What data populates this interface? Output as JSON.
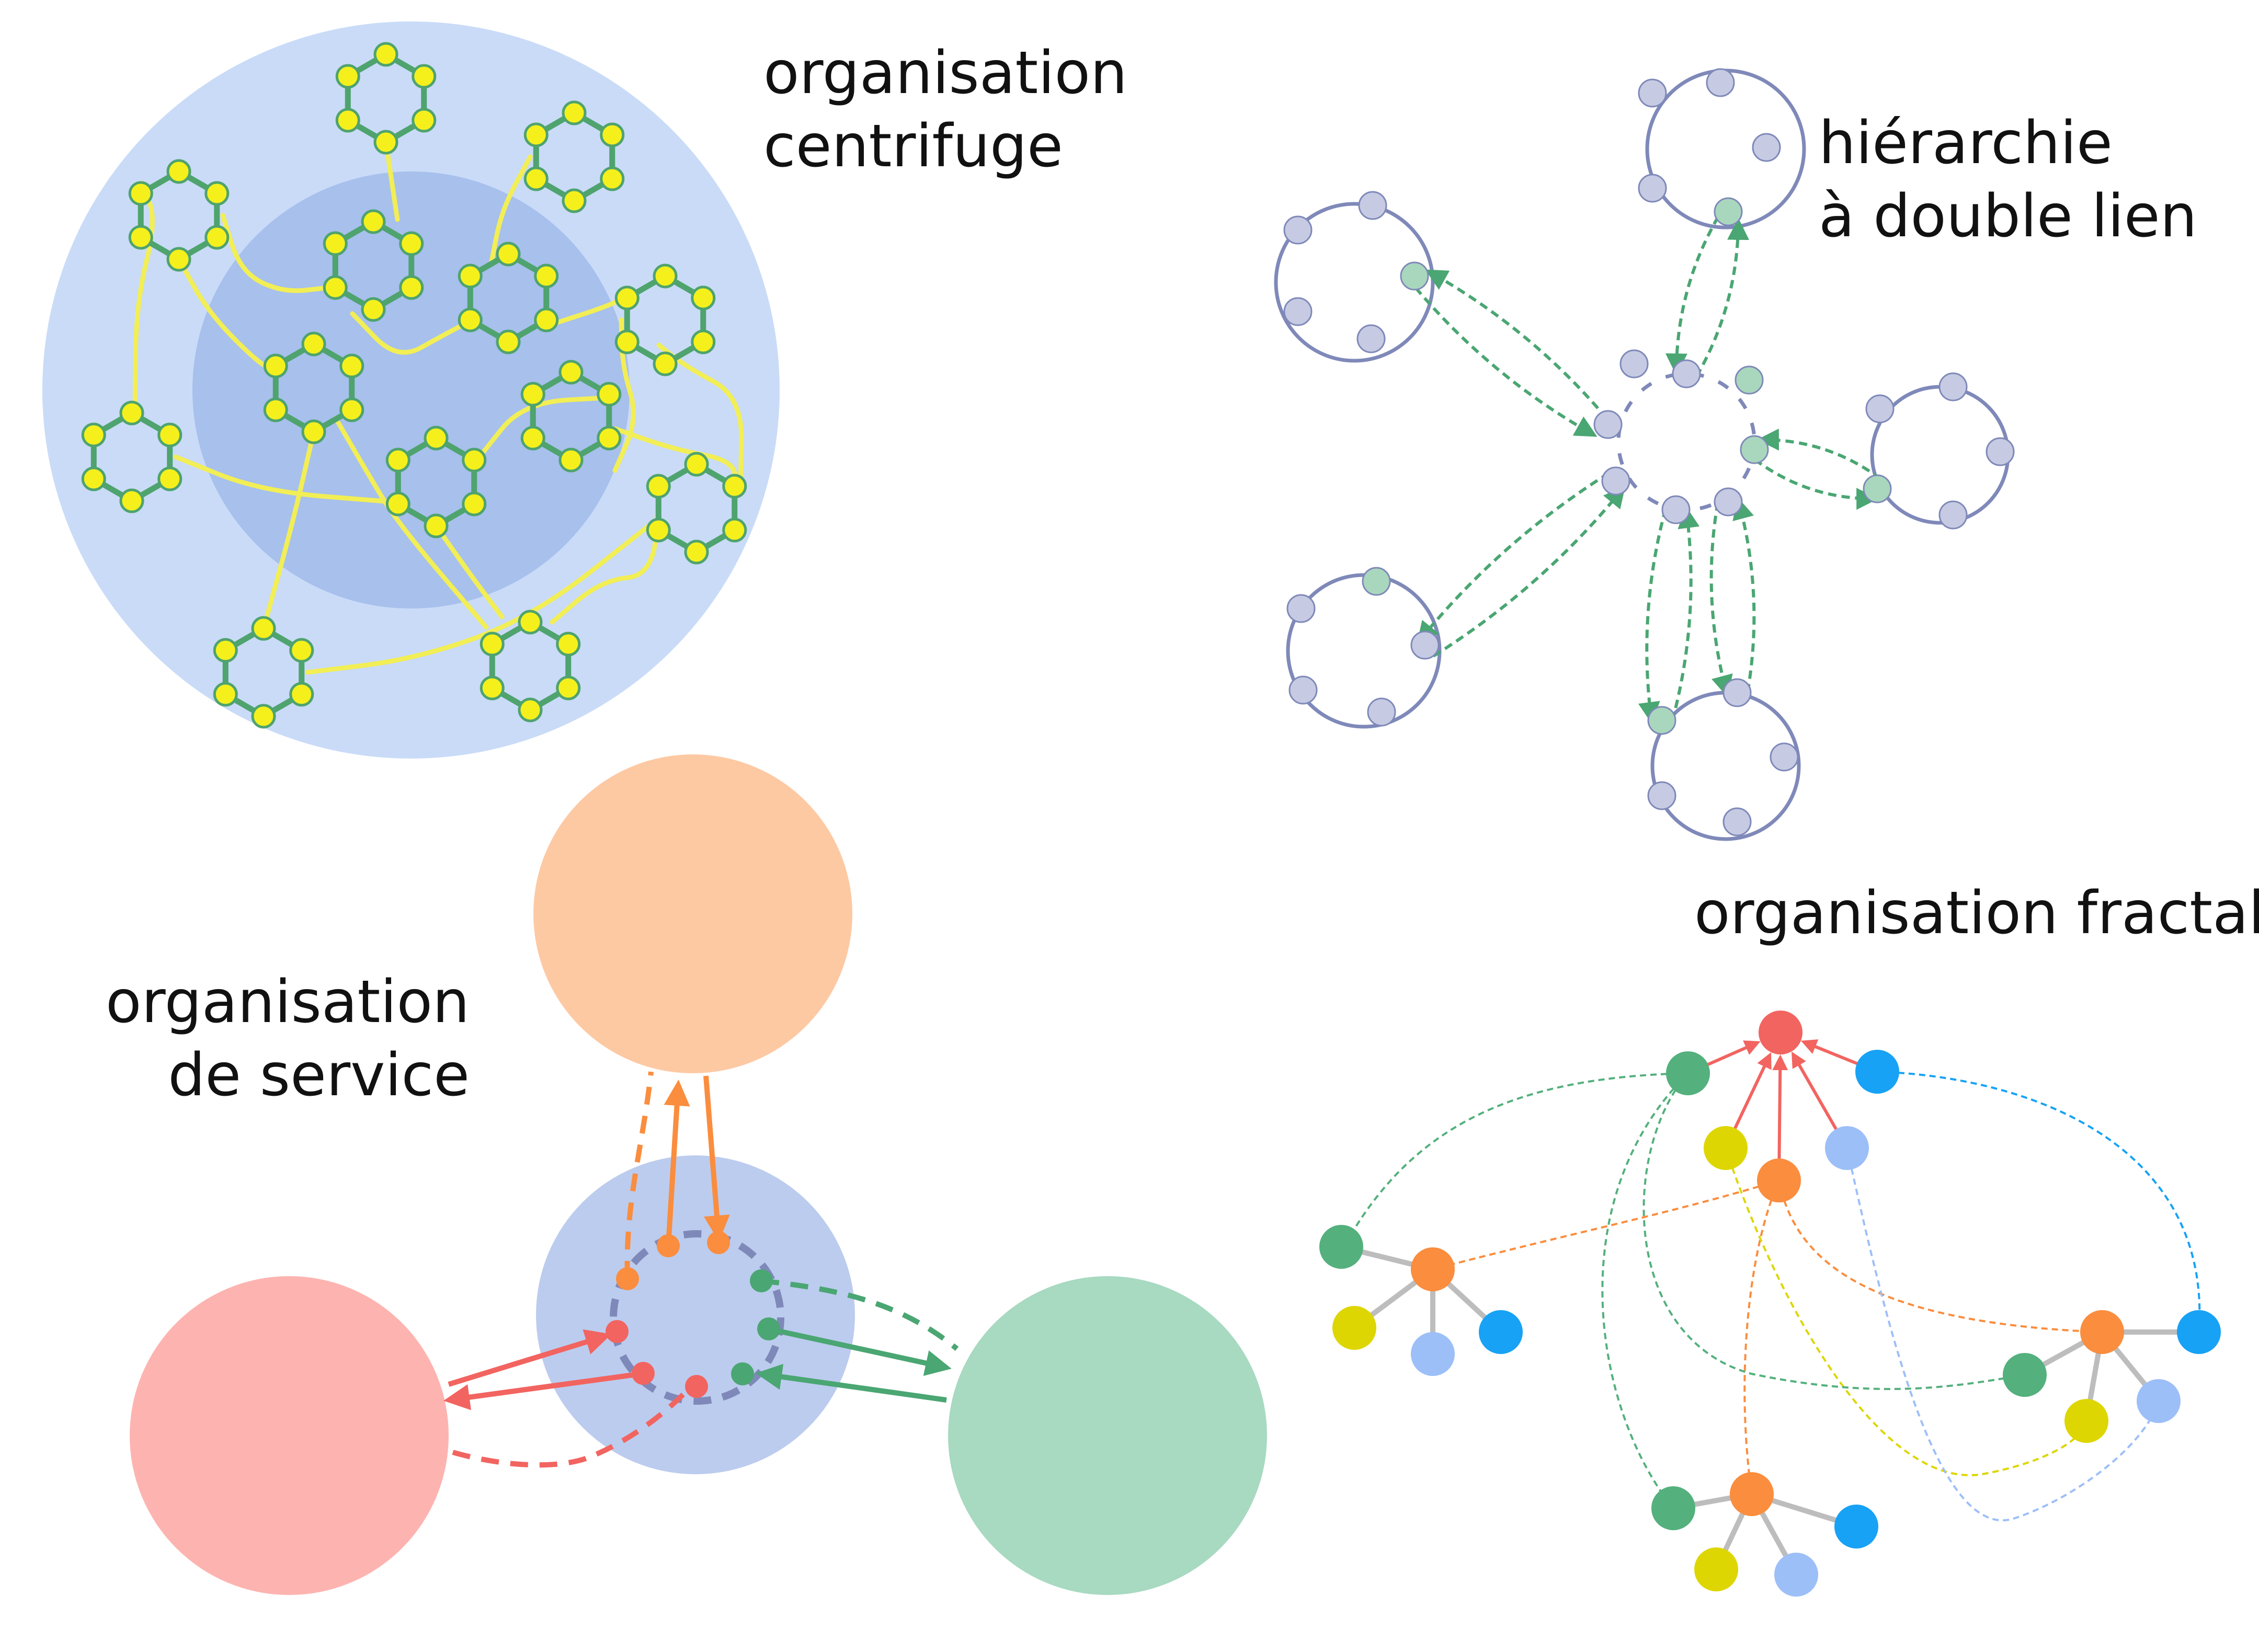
{
  "labels": {
    "centrifuge_line1": "organisation",
    "centrifuge_line2": "centrifuge",
    "hierarchy_line1": "hiérarchie",
    "hierarchy_line2": "à double lien",
    "fractal": "organisation fractale",
    "service_line1": "organisation",
    "service_line2": "de service"
  },
  "colors": {
    "outer_disc": "#c9dbf7",
    "inner_disc": "#a7c0ec",
    "hex_ring": "#4fa36e",
    "hex_node": "#f5f01c",
    "yellow_link": "#f2ee55",
    "ring_line": "#7f89b9",
    "ring_node": "#c6cbe3",
    "ring_node_green": "#a9d7bd",
    "green_arrow": "#4aa672",
    "orange": "#fa8d3e",
    "peach": "#fdc9a3",
    "pink": "#fdb4b0",
    "red": "#f26460",
    "mint": "#a8d9c1",
    "service_center": "#bcccee",
    "green_node": "#54b07d",
    "blue_node": "#17a2f5",
    "lightblue_node": "#9dbff8",
    "yellow_node": "#ddd602",
    "gray_edge": "#bdbdbd"
  }
}
